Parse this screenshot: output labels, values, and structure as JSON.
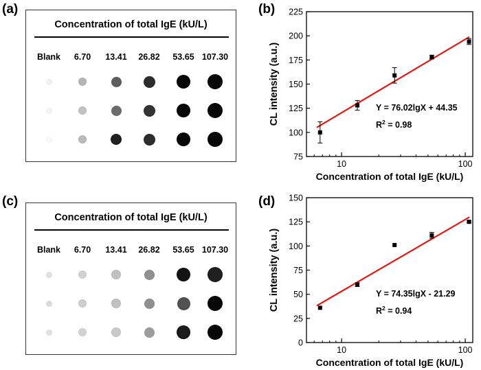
{
  "panel_labels": {
    "a": "(a)",
    "b": "(b)",
    "c": "(c)",
    "d": "(d)"
  },
  "dot_panels": [
    {
      "title": "Concentration of total IgE (kU/L)",
      "columns": [
        "Blank",
        "6.70",
        "13.41",
        "26.82",
        "53.65",
        "107.30"
      ],
      "darkness": [
        [
          0.06,
          0.3,
          0.65,
          0.85,
          1.0,
          1.0
        ],
        [
          0.05,
          0.25,
          0.6,
          0.82,
          1.0,
          1.0
        ],
        [
          0.03,
          0.28,
          0.9,
          0.85,
          1.0,
          1.0
        ]
      ]
    },
    {
      "title": "Concentration of total IgE (kU/L)",
      "columns": [
        "Blank",
        "6.70",
        "13.41",
        "26.82",
        "53.65",
        "107.30"
      ],
      "darkness": [
        [
          0.12,
          0.18,
          0.25,
          0.45,
          0.95,
          0.9
        ],
        [
          0.14,
          0.2,
          0.25,
          0.45,
          0.7,
          1.0
        ],
        [
          0.12,
          0.18,
          0.22,
          0.4,
          0.92,
          1.0
        ]
      ]
    }
  ],
  "chart_data": [
    {
      "type": "scatter",
      "title": "",
      "xlabel": "Concentration of total IgE (kU/L)",
      "ylabel": "CL intensity (a.u.)",
      "xscale": "log",
      "xlim": [
        5.2,
        115
      ],
      "ylim": [
        75,
        225
      ],
      "yticks": [
        75,
        100,
        125,
        150,
        175,
        200,
        225
      ],
      "xticks": [
        10,
        100
      ],
      "xtick_labels": [
        "10",
        "100"
      ],
      "x": [
        6.7,
        13.41,
        26.82,
        53.65,
        107.3
      ],
      "y": [
        100,
        128,
        159,
        178,
        194
      ],
      "yerr": [
        11,
        5,
        8,
        2,
        3
      ],
      "fit": {
        "slope": 76.02,
        "intercept": 44.35
      },
      "fit_range": [
        6.3,
        108
      ],
      "equation": "Y = 76.02lgX + 44.35",
      "r2": "R",
      "r2_sup": "2",
      "r2_value": " = 0.98"
    },
    {
      "type": "scatter",
      "title": "",
      "xlabel": "Concentration of total IgE (kU/L)",
      "ylabel": "CL intensity (a.u.)",
      "xscale": "log",
      "xlim": [
        5.2,
        115
      ],
      "ylim": [
        0,
        150
      ],
      "yticks": [
        0,
        25,
        50,
        75,
        100,
        125,
        150
      ],
      "xticks": [
        10,
        100
      ],
      "xtick_labels": [
        "10",
        "100"
      ],
      "x": [
        6.7,
        13.41,
        26.82,
        53.65,
        107.3
      ],
      "y": [
        36,
        60,
        101,
        111,
        125
      ],
      "yerr": [
        0,
        2,
        0,
        3,
        1
      ],
      "fit": {
        "slope": 74.35,
        "intercept": -21.29
      },
      "fit_range": [
        6.3,
        108
      ],
      "equation": "Y = 74.35lgX - 21.29",
      "r2": "R",
      "r2_sup": "2",
      "r2_value": " = 0.94"
    }
  ],
  "colors": {
    "fit_line": "#e8150f",
    "marker": "#000000"
  }
}
